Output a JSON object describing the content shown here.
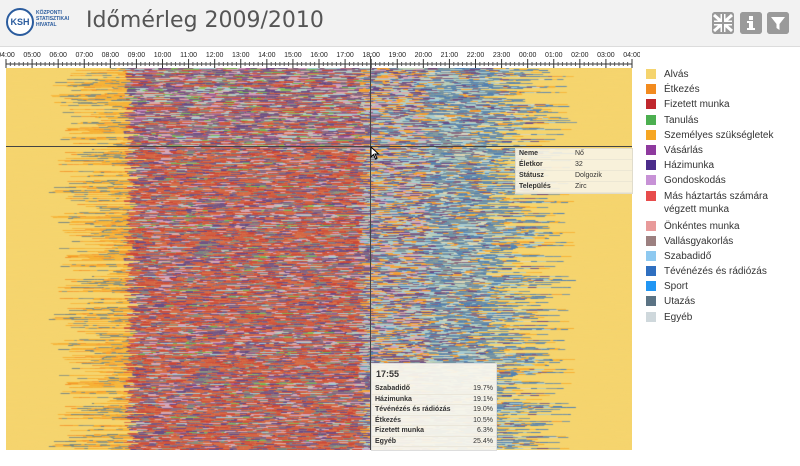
{
  "header": {
    "title": "Időmérleg 2009/2010",
    "logo_text": "KSH",
    "logo_lines": [
      "KÖZPONTI",
      "STATISZTIKAI",
      "HIVATAL"
    ],
    "buttons": [
      {
        "name": "language-button",
        "icon": "uk-flag-icon"
      },
      {
        "name": "info-button",
        "icon": "info-icon"
      },
      {
        "name": "filter-button",
        "icon": "filter-icon"
      }
    ]
  },
  "axis": {
    "ticks": [
      "04:00",
      "05:00",
      "06:00",
      "07:00",
      "08:00",
      "09:00",
      "10:00",
      "11:00",
      "12:00",
      "13:00",
      "14:00",
      "15:00",
      "16:00",
      "17:00",
      "18:00",
      "19:00",
      "20:00",
      "21:00",
      "22:00",
      "23:00",
      "00:00",
      "01:00",
      "02:00",
      "03:00",
      "04:00"
    ]
  },
  "legend": [
    {
      "label": "Alvás",
      "color": "#f5d46e"
    },
    {
      "label": "Étkezés",
      "color": "#f28b1f"
    },
    {
      "label": "Fizetett munka",
      "color": "#c0272d"
    },
    {
      "label": "Tanulás",
      "color": "#4caf50"
    },
    {
      "label": "Személyes szükségletek",
      "color": "#f6a623"
    },
    {
      "label": "Vásárlás",
      "color": "#8e3a9e"
    },
    {
      "label": "Házimunka",
      "color": "#4b2c8a"
    },
    {
      "label": "Gondoskodás",
      "color": "#c792d6"
    },
    {
      "label": "Más háztartás számára végzett munka",
      "color": "#e74c4c"
    },
    {
      "label": "Önkéntes munka",
      "color": "#e89a9a"
    },
    {
      "label": "Vallásgyakorlás",
      "color": "#9c8080"
    },
    {
      "label": "Szabadidő",
      "color": "#8ec9f0"
    },
    {
      "label": "Tévénézés és rádiózás",
      "color": "#2f6fc0"
    },
    {
      "label": "Sport",
      "color": "#2196f3"
    },
    {
      "label": "Utazás",
      "color": "#5b7384"
    },
    {
      "label": "Egyéb",
      "color": "#cfd8dc"
    }
  ],
  "info_tooltip": {
    "rows": [
      {
        "key": "Neme",
        "value": "Nő"
      },
      {
        "key": "Életkor",
        "value": "32"
      },
      {
        "key": "Státusz",
        "value": "Dolgozik"
      },
      {
        "key": "Település",
        "value": "Zirc"
      }
    ]
  },
  "time_tooltip": {
    "time": "17:55",
    "rows": [
      {
        "key": "Szabadidő",
        "value": "19.7%"
      },
      {
        "key": "Házimunka",
        "value": "19.1%"
      },
      {
        "key": "Tévénézés és rádiózás",
        "value": "19.0%"
      },
      {
        "key": "Étkezés",
        "value": "10.5%"
      },
      {
        "key": "Fizetett munka",
        "value": "6.3%"
      },
      {
        "key": "Egyéb",
        "value": "25.4%"
      }
    ]
  }
}
